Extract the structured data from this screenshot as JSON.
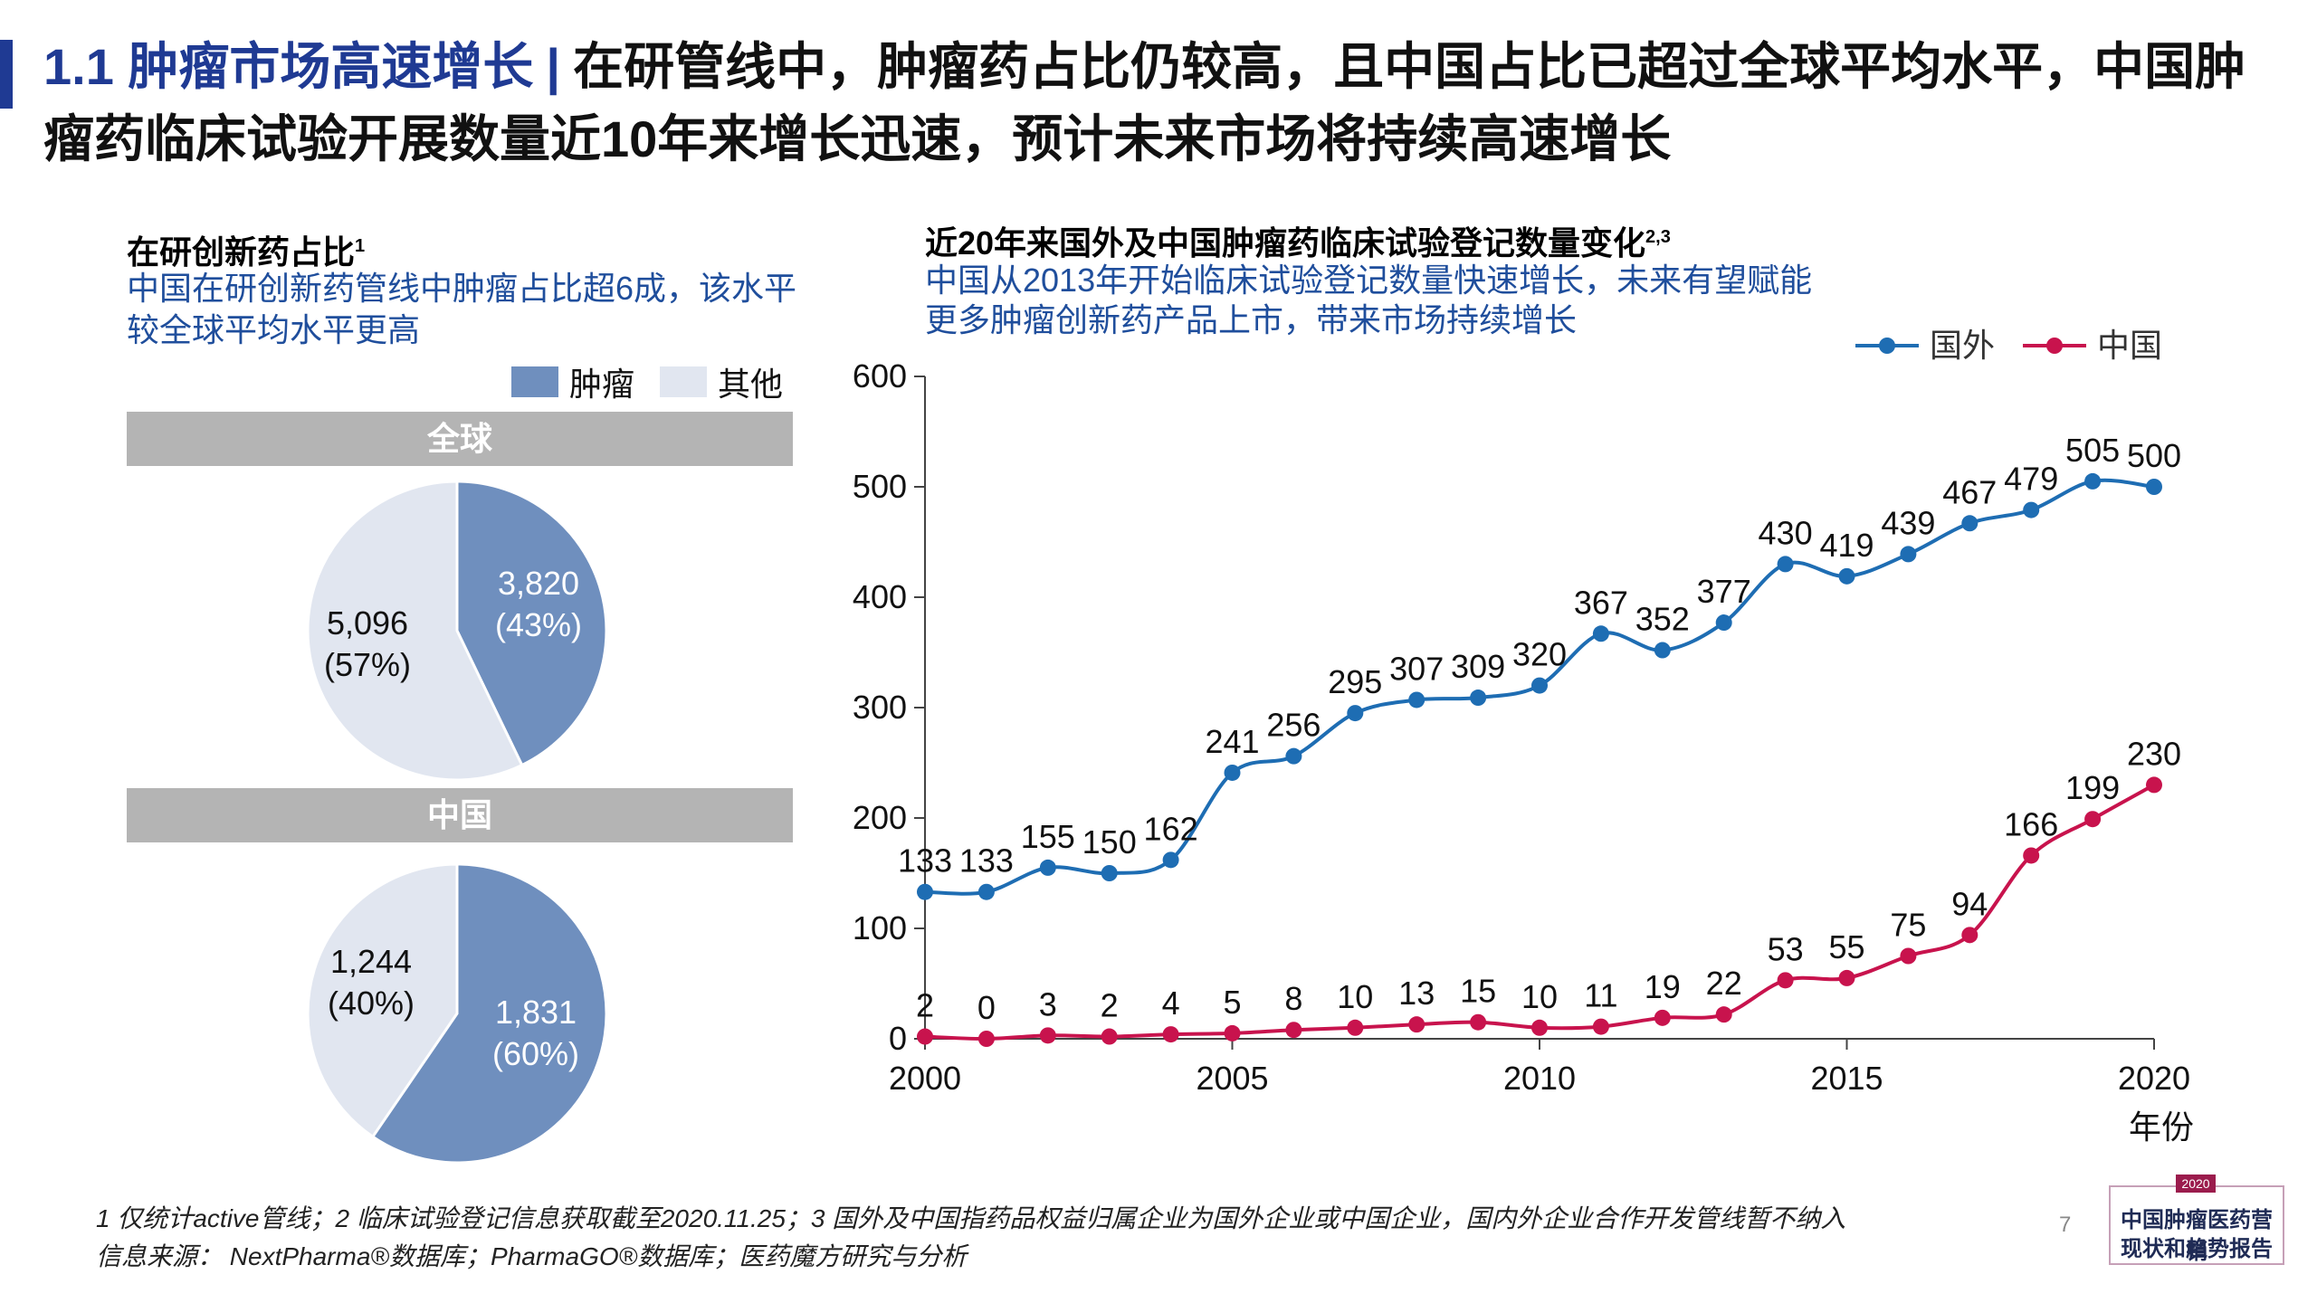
{
  "header": {
    "tag": "1.1 肿瘤市场高速增长",
    "separator": "|",
    "text": "在研管线中，肿瘤药占比仍较高，且中国占比已超过全球平均水平，中国肿瘤药临床试验开展数量近10年来增长迅速，预计未来市场将持续高速增长"
  },
  "left_panel": {
    "title": "在研创新药占比",
    "title_sup": "1",
    "subtitle": "中国在研创新药管线中肿瘤占比超6成，该水平较全球平均水平更高",
    "legend": [
      {
        "label": "肿瘤",
        "color": "#6f8fbe"
      },
      {
        "label": "其他",
        "color": "#e1e6f0"
      }
    ]
  },
  "right_panel": {
    "title": "近20年来国外及中国肿瘤药临床试验登记数量变化",
    "title_sup": "2,3",
    "subtitle_line1": "中国从2013年开始临床试验登记数量快速增长，未来有望赋能",
    "subtitle_line2": "更多肿瘤创新药产品上市，带来市场持续增长"
  },
  "chart_data": [
    {
      "type": "pie",
      "title": "全球",
      "slices": [
        {
          "label": "肿瘤",
          "value": 3820,
          "value_text": "3,820",
          "pct_text": "(43%)",
          "color": "#6f8fbe"
        },
        {
          "label": "其他",
          "value": 5096,
          "value_text": "5,096",
          "pct_text": "(57%)",
          "color": "#e1e6f0"
        }
      ]
    },
    {
      "type": "pie",
      "title": "中国",
      "slices": [
        {
          "label": "肿瘤",
          "value": 1831,
          "value_text": "1,831",
          "pct_text": "(60%)",
          "color": "#6f8fbe"
        },
        {
          "label": "其他",
          "value": 1244,
          "value_text": "1,244",
          "pct_text": "(40%)",
          "color": "#e1e6f0"
        }
      ]
    },
    {
      "type": "line",
      "title": "",
      "xlabel": "年份",
      "ylabel": "",
      "x": [
        2000,
        2001,
        2002,
        2003,
        2004,
        2005,
        2006,
        2007,
        2008,
        2009,
        2010,
        2011,
        2012,
        2013,
        2014,
        2015,
        2016,
        2017,
        2018,
        2019,
        2020
      ],
      "xlim": [
        2000,
        2020
      ],
      "ylim": [
        0,
        600
      ],
      "x_ticks": [
        "2000",
        "2005",
        "2010",
        "2015",
        "2020"
      ],
      "y_ticks": [
        "0",
        "100",
        "200",
        "300",
        "400",
        "500",
        "600"
      ],
      "legend_position": "top-right",
      "series": [
        {
          "name": "国外",
          "color": "#1e6db3",
          "values": [
            133,
            133,
            155,
            150,
            162,
            241,
            256,
            295,
            307,
            309,
            320,
            367,
            352,
            377,
            430,
            419,
            439,
            467,
            479,
            505,
            500
          ]
        },
        {
          "name": "中国",
          "color": "#c8134d",
          "values": [
            2,
            0,
            3,
            2,
            4,
            5,
            8,
            10,
            13,
            15,
            10,
            11,
            19,
            22,
            53,
            55,
            75,
            94,
            166,
            199,
            230
          ]
        }
      ]
    }
  ],
  "footnote": {
    "line1": "1 仅统计active管线；2 临床试验登记信息获取截至2020.11.25；3 国外及中国指药品权益归属企业为国外企业或中国企业，国内外企业合作开发管线暂不纳入",
    "line2": "信息来源： NextPharma®数据库；PharmaGO®数据库；医药魔方研究与分析"
  },
  "page_number": "7",
  "stamp": {
    "year": "2020",
    "line1": "中国肿瘤医药营销",
    "line2": "现状和趋势报告"
  }
}
